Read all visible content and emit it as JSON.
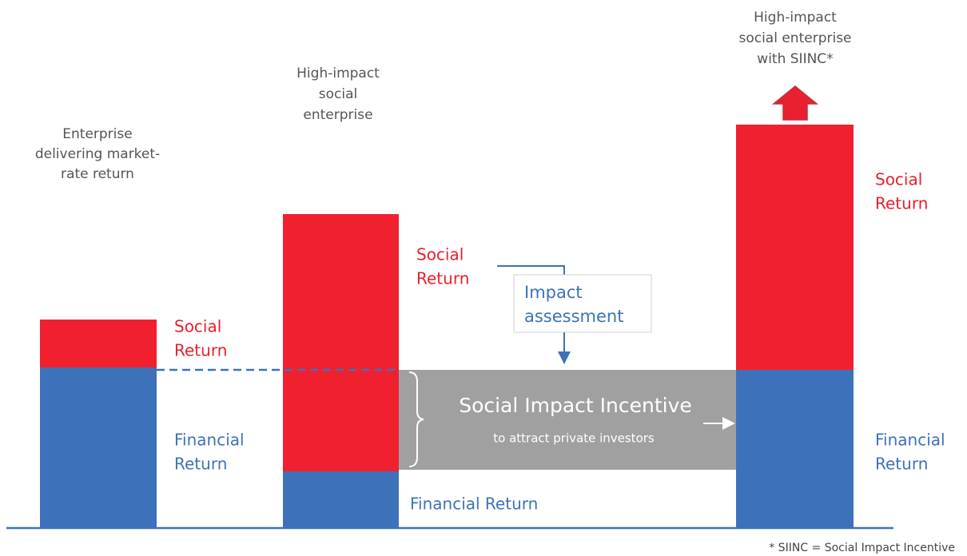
{
  "columns": [
    {
      "label": [
        "Enterprise",
        "delivering market-",
        "rate return"
      ],
      "social": [
        "Social",
        "Return"
      ],
      "financial": [
        "Financial",
        "Return"
      ]
    },
    {
      "label": [
        "High-impact",
        "social",
        "enterprise"
      ],
      "social": [
        "Social",
        "Return"
      ],
      "financial": [
        "Financial Return"
      ]
    },
    {
      "label": [
        "High-impact",
        "social enterprise",
        "with SIINC*"
      ],
      "social": [
        "Social",
        "Return"
      ],
      "financial": [
        "Financial",
        "Return"
      ]
    }
  ],
  "incentive": {
    "title": "Social Impact Incentive",
    "subtitle": "to attract private investors"
  },
  "assessment": [
    "Impact",
    "assessment"
  ],
  "footnote": "* SIINC = Social Impact Incentive"
}
